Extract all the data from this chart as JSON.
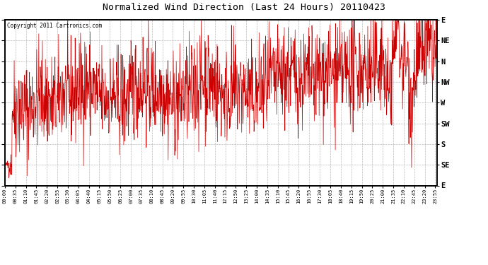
{
  "title": "Normalized Wind Direction (Last 24 Hours) 20110423",
  "copyright_text": "Copyright 2011 Cartronics.com",
  "line_color": "#cc0000",
  "background_color": "#ffffff",
  "grid_color": "#aaaaaa",
  "ylabel_right": [
    "E",
    "NE",
    "N",
    "NW",
    "W",
    "SW",
    "S",
    "SE",
    "E"
  ],
  "ytick_values": [
    360,
    315,
    270,
    225,
    180,
    135,
    90,
    45,
    0
  ],
  "ylim": [
    0,
    360
  ],
  "xtick_labels": [
    "00:00",
    "00:35",
    "01:10",
    "01:45",
    "02:20",
    "02:55",
    "03:30",
    "04:05",
    "04:40",
    "05:15",
    "05:50",
    "06:25",
    "07:00",
    "07:35",
    "08:10",
    "08:45",
    "09:20",
    "09:55",
    "10:30",
    "11:05",
    "11:40",
    "12:15",
    "12:50",
    "13:25",
    "14:00",
    "14:35",
    "15:10",
    "15:45",
    "16:20",
    "16:55",
    "17:30",
    "18:05",
    "18:40",
    "19:15",
    "19:50",
    "20:25",
    "21:00",
    "21:35",
    "22:10",
    "22:45",
    "23:20",
    "23:55"
  ],
  "figsize": [
    6.9,
    3.75
  ],
  "dpi": 100,
  "seed": 42,
  "n_points": 1440,
  "noise_base": 55,
  "linewidth": 0.5
}
